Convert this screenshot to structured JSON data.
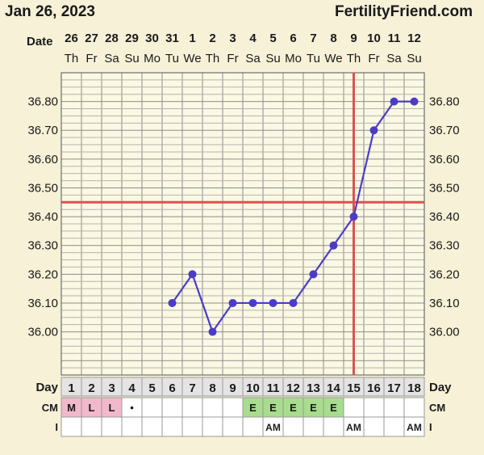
{
  "header": {
    "date": "Jan 26, 2023",
    "site": "FertilityFriend.com"
  },
  "chart_data": {
    "type": "line",
    "date_label": "Date",
    "dates": [
      "26",
      "27",
      "28",
      "29",
      "30",
      "31",
      "1",
      "2",
      "3",
      "4",
      "5",
      "6",
      "7",
      "8",
      "9",
      "10",
      "11",
      "12"
    ],
    "weekdays": [
      "Th",
      "Fr",
      "Sa",
      "Su",
      "Mo",
      "Tu",
      "We",
      "Th",
      "Fr",
      "Sa",
      "Su",
      "Mo",
      "Tu",
      "We",
      "Th",
      "Fr",
      "Sa",
      "Su"
    ],
    "days": [
      "1",
      "2",
      "3",
      "4",
      "5",
      "6",
      "7",
      "8",
      "9",
      "10",
      "11",
      "12",
      "13",
      "14",
      "15",
      "16",
      "17",
      "18"
    ],
    "yticks": [
      "36.00",
      "36.10",
      "36.20",
      "36.30",
      "36.40",
      "36.50",
      "36.60",
      "36.70",
      "36.80"
    ],
    "ylim": [
      35.85,
      36.9
    ],
    "series": [
      {
        "x": [
          6,
          7,
          8,
          9,
          10,
          11,
          12,
          13,
          14,
          15,
          16,
          17,
          18
        ],
        "y": [
          36.1,
          36.2,
          36.0,
          36.1,
          36.1,
          36.1,
          36.1,
          36.2,
          36.3,
          36.4,
          36.7,
          36.8,
          36.8
        ],
        "color": "#4b3cc8"
      }
    ],
    "coverline": 36.45,
    "ovulation_day": 15,
    "reference_line_color": "#d9534f",
    "grid": true,
    "rows": {
      "day_label": "Day",
      "cm_label": "CM",
      "i_label": "I",
      "cm": [
        "M",
        "L",
        "L",
        "•",
        "",
        "",
        "",
        "",
        "",
        "E",
        "E",
        "E",
        "E",
        "E",
        "",
        "",
        "",
        ""
      ],
      "cm_colors": {
        "M": "#f2b8cc",
        "L": "#f2b8cc",
        "E": "#a8dc8e"
      },
      "intercourse": [
        "",
        "",
        "",
        "",
        "",
        "",
        "",
        "",
        "",
        "",
        "AM",
        "",
        "",
        "",
        "AM",
        "",
        "",
        "AM"
      ]
    }
  }
}
